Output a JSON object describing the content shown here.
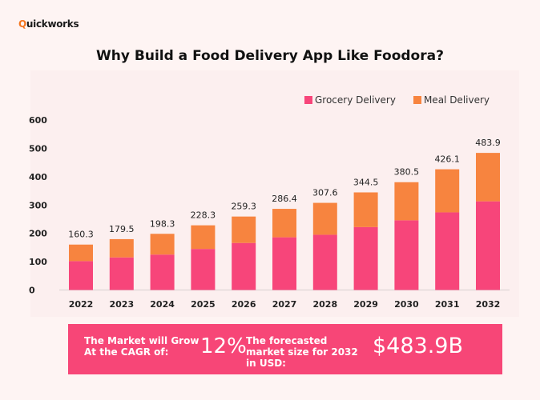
{
  "brand": {
    "logo_first": "Q",
    "logo_rest": "uickworks"
  },
  "title": "Why Build a Food Delivery App Like Foodora?",
  "chart_data": {
    "type": "bar",
    "stacked": true,
    "categories": [
      "2022",
      "2023",
      "2024",
      "2025",
      "2026",
      "2027",
      "2028",
      "2029",
      "2030",
      "2031",
      "2032"
    ],
    "series": [
      {
        "name": "Grocery Delivery",
        "color": "#f7457a",
        "values": [
          102,
          115,
          125,
          145,
          166,
          186,
          195,
          222,
          246,
          274,
          313
        ]
      },
      {
        "name": "Meal Delivery",
        "color": "#f7843f",
        "values": [
          58.3,
          64.5,
          73.3,
          83.3,
          93.3,
          100.4,
          112.6,
          122.5,
          134.5,
          152.1,
          170.9
        ]
      }
    ],
    "totals": [
      "160.3",
      "179.5",
      "198.3",
      "228.3",
      "259.3",
      "286.4",
      "307.6",
      "344.5",
      "380.5",
      "426.1",
      "483.9"
    ],
    "ylim": [
      0,
      600
    ],
    "yticks": [
      "0",
      "100",
      "200",
      "300",
      "400",
      "500",
      "600"
    ],
    "grid": false,
    "legend": "top-right"
  },
  "banner": {
    "cagr_label": "The Market will Grow At the CAGR of:",
    "cagr_value": "12%",
    "forecast_label": "The forecasted market size for 2032 in USD:",
    "forecast_value": "$483.9B"
  }
}
